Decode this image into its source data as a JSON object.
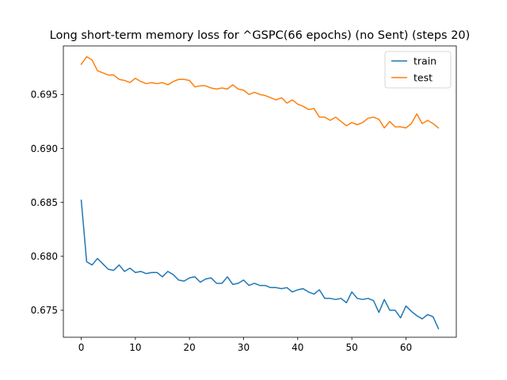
{
  "chart_data": {
    "type": "line",
    "title": "Long short-term memory loss for ^GSPC(66 epochs) (no Sent) (steps 20)",
    "xlabel": "",
    "ylabel": "",
    "xlim": [
      -3.3,
      69.3
    ],
    "ylim": [
      0.6725,
      0.6995
    ],
    "xticks": [
      0,
      10,
      20,
      30,
      40,
      50,
      60
    ],
    "xtick_labels": [
      "0",
      "10",
      "20",
      "30",
      "40",
      "50",
      "60"
    ],
    "yticks": [
      0.675,
      0.68,
      0.685,
      0.69,
      0.695
    ],
    "ytick_labels": [
      "0.675",
      "0.680",
      "0.685",
      "0.690",
      "0.695"
    ],
    "grid": false,
    "legend_position": "top-right",
    "colors": {
      "train": "#1f77b4",
      "test": "#ff7f0e"
    },
    "series": [
      {
        "name": "train",
        "x": [
          0,
          1,
          2,
          3,
          4,
          5,
          6,
          7,
          8,
          9,
          10,
          11,
          12,
          13,
          14,
          15,
          16,
          17,
          18,
          19,
          20,
          21,
          22,
          23,
          24,
          25,
          26,
          27,
          28,
          29,
          30,
          31,
          32,
          33,
          34,
          35,
          36,
          37,
          38,
          39,
          40,
          41,
          42,
          43,
          44,
          45,
          46,
          47,
          48,
          49,
          50,
          51,
          52,
          53,
          54,
          55,
          56,
          57,
          58,
          59,
          60,
          61,
          62,
          63,
          64,
          65,
          66
        ],
        "values": [
          0.6852,
          0.6795,
          0.6792,
          0.6798,
          0.6793,
          0.6788,
          0.6787,
          0.6792,
          0.6786,
          0.6789,
          0.6785,
          0.6786,
          0.6784,
          0.6785,
          0.6785,
          0.6781,
          0.6786,
          0.6783,
          0.6778,
          0.6777,
          0.678,
          0.6781,
          0.6776,
          0.6779,
          0.678,
          0.6775,
          0.6775,
          0.6781,
          0.6774,
          0.6775,
          0.6778,
          0.6773,
          0.6775,
          0.6773,
          0.6773,
          0.6771,
          0.6771,
          0.677,
          0.6771,
          0.6767,
          0.6769,
          0.677,
          0.6767,
          0.6765,
          0.6769,
          0.6761,
          0.6761,
          0.676,
          0.6761,
          0.6757,
          0.6767,
          0.6761,
          0.676,
          0.6761,
          0.6759,
          0.6748,
          0.676,
          0.675,
          0.675,
          0.6743,
          0.6754,
          0.6749,
          0.6745,
          0.6742,
          0.6746,
          0.6744,
          0.6733
        ]
      },
      {
        "name": "test",
        "x": [
          0,
          1,
          2,
          3,
          4,
          5,
          6,
          7,
          8,
          9,
          10,
          11,
          12,
          13,
          14,
          15,
          16,
          17,
          18,
          19,
          20,
          21,
          22,
          23,
          24,
          25,
          26,
          27,
          28,
          29,
          30,
          31,
          32,
          33,
          34,
          35,
          36,
          37,
          38,
          39,
          40,
          41,
          42,
          43,
          44,
          45,
          46,
          47,
          48,
          49,
          50,
          51,
          52,
          53,
          54,
          55,
          56,
          57,
          58,
          59,
          60,
          61,
          62,
          63,
          64,
          65,
          66
        ],
        "values": [
          0.6978,
          0.6985,
          0.6982,
          0.6972,
          0.697,
          0.6968,
          0.6968,
          0.6964,
          0.6963,
          0.6961,
          0.6965,
          0.6962,
          0.696,
          0.6961,
          0.696,
          0.6961,
          0.6959,
          0.6962,
          0.6964,
          0.6964,
          0.6963,
          0.6957,
          0.6958,
          0.6958,
          0.6956,
          0.6955,
          0.6956,
          0.6955,
          0.6959,
          0.6955,
          0.6954,
          0.695,
          0.6952,
          0.695,
          0.6949,
          0.6947,
          0.6945,
          0.6947,
          0.6942,
          0.6945,
          0.6941,
          0.6939,
          0.6936,
          0.6937,
          0.6929,
          0.6929,
          0.6926,
          0.6929,
          0.6925,
          0.6921,
          0.6924,
          0.6922,
          0.6924,
          0.6928,
          0.6929,
          0.6927,
          0.6919,
          0.6925,
          0.692,
          0.692,
          0.6919,
          0.6923,
          0.6932,
          0.6923,
          0.6926,
          0.6923,
          0.6919
        ]
      }
    ]
  }
}
